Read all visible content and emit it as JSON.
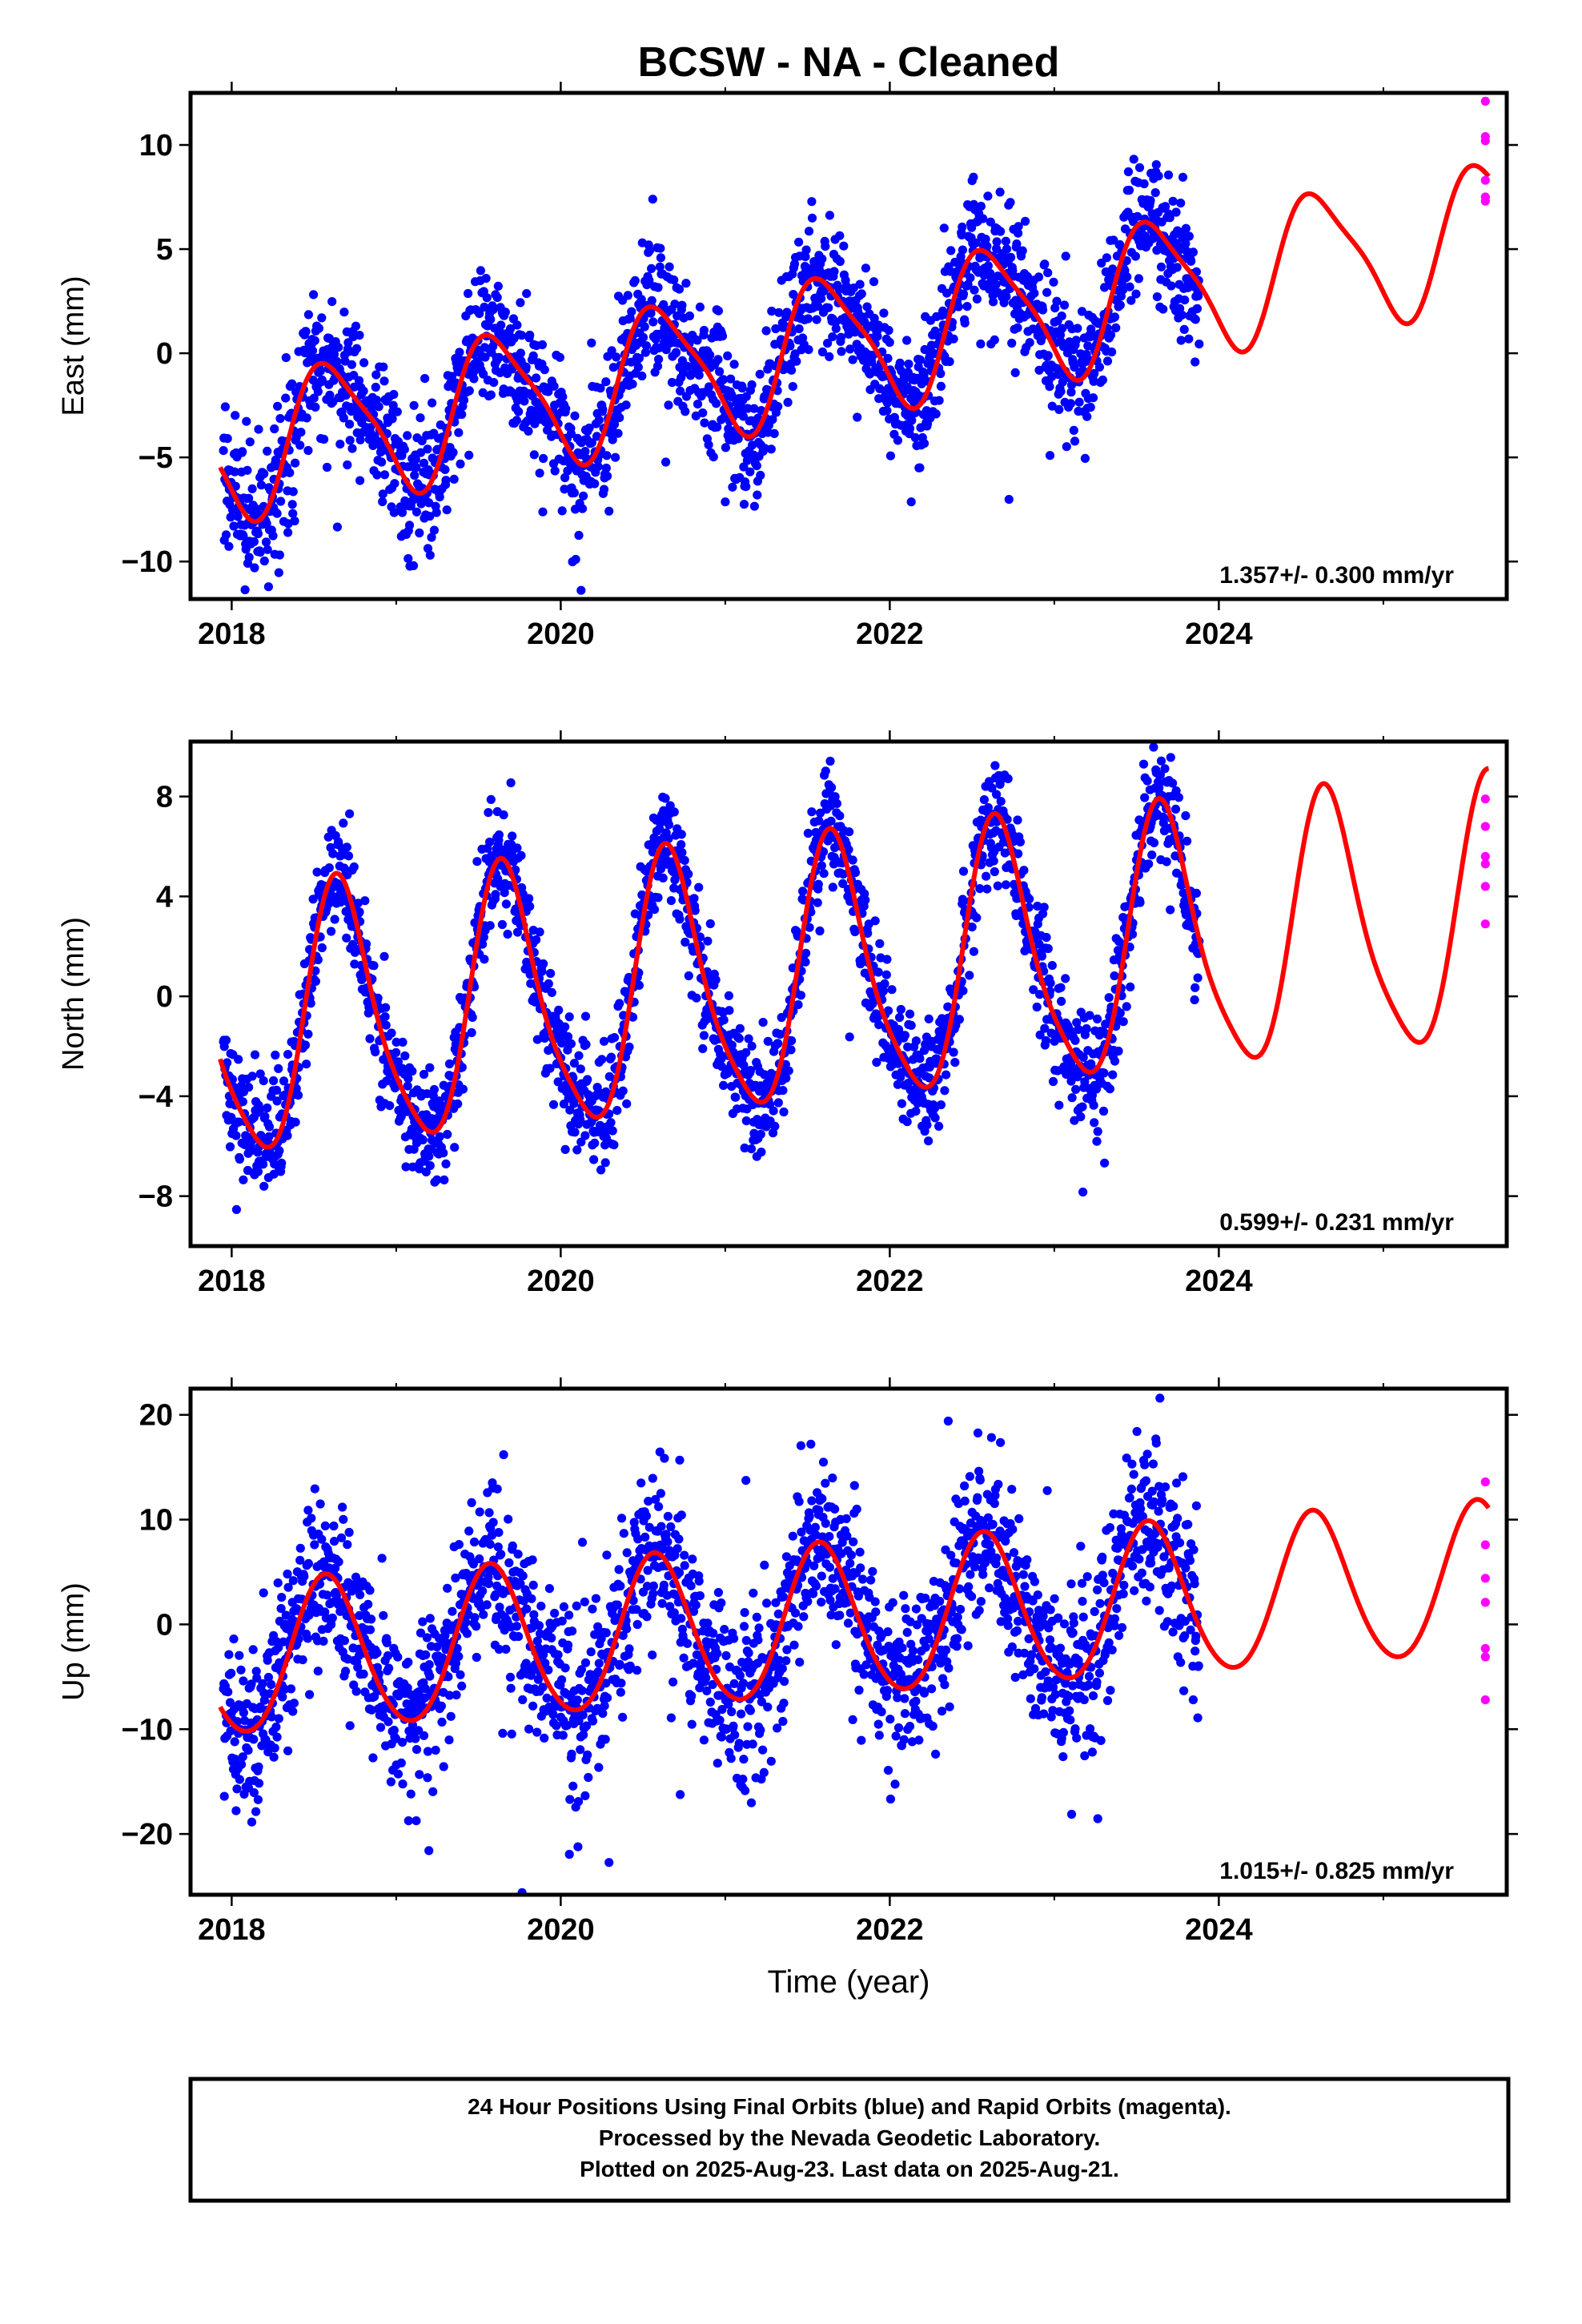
{
  "figure_title": "BCSW  - NA - Cleaned",
  "footer": {
    "line1": "24 Hour Positions Using Final Orbits (blue) and Rapid Orbits (magenta).",
    "line2": "Processed by the Nevada Geodetic Laboratory.",
    "line3": "Plotted on 2025-Aug-23. Last data on 2025-Aug-21."
  },
  "colors": {
    "final": "#0000ff",
    "rapid": "#ff00ff",
    "model": "#ff0000",
    "axes": "#000000"
  },
  "chart_data": [
    {
      "type": "scatter",
      "ylabel": "East (mm)",
      "xlabel": "",
      "xlim": [
        2017.75,
        2025.75
      ],
      "ylim": [
        -11.8,
        12.5
      ],
      "xticks": [
        "2018",
        "2020",
        "2022",
        "2024"
      ],
      "yticks": [
        "−10",
        "−5",
        "0",
        "5",
        "10"
      ],
      "rate_label": "1.357+/- 0.300 mm/yr",
      "data_span": [
        2017.95,
        2023.88
      ],
      "model": {
        "trend": [
          0.0,
          1.357
        ],
        "ref_year": 2021.0,
        "offset": -0.5,
        "annual": [
          -2.6,
          -2.0
        ],
        "semiannual": [
          0.6,
          -0.4
        ]
      },
      "noise_sd": 1.6,
      "outlier_fraction": 0.03,
      "final_points_count_note": "",
      "rapid_points": [
        {
          "x": 2025.62,
          "y": 12.1
        },
        {
          "x": 2025.62,
          "y": 10.4
        },
        {
          "x": 2025.62,
          "y": 10.2
        },
        {
          "x": 2025.62,
          "y": 8.3
        },
        {
          "x": 2025.62,
          "y": 7.5
        },
        {
          "x": 2025.62,
          "y": 7.3
        }
      ]
    },
    {
      "type": "scatter",
      "ylabel": "North (mm)",
      "xlabel": "",
      "xlim": [
        2017.75,
        2025.75
      ],
      "ylim": [
        -10.0,
        10.2
      ],
      "xticks": [
        "2018",
        "2020",
        "2022",
        "2024"
      ],
      "yticks": [
        "−8",
        "−4",
        "0",
        "4",
        "8"
      ],
      "rate_label": "0.599+/- 0.231 mm/yr",
      "data_span": [
        2017.95,
        2023.88
      ],
      "model": {
        "trend": [
          0.0,
          0.599
        ],
        "ref_year": 2021.0,
        "offset": 0.4,
        "annual": [
          -2.7,
          -4.4
        ],
        "semiannual": [
          0.3,
          0.9
        ]
      },
      "noise_sd": 1.1,
      "outlier_fraction": 0.03,
      "rapid_points": [
        {
          "x": 2025.62,
          "y": 7.9
        },
        {
          "x": 2025.62,
          "y": 6.8
        },
        {
          "x": 2025.62,
          "y": 5.6
        },
        {
          "x": 2025.62,
          "y": 5.3
        },
        {
          "x": 2025.62,
          "y": 4.4
        },
        {
          "x": 2025.62,
          "y": 2.9
        }
      ]
    },
    {
      "type": "scatter",
      "ylabel": "Up (mm)",
      "xlabel": "Time (year)",
      "xlim": [
        2017.75,
        2025.75
      ],
      "ylim": [
        -25.8,
        22.5
      ],
      "xticks": [
        "2018",
        "2020",
        "2022",
        "2024"
      ],
      "yticks": [
        "−20",
        "−10",
        "0",
        "10",
        "20"
      ],
      "rate_label": "1.015+/- 0.825 mm/yr",
      "data_span": [
        2017.95,
        2023.88
      ],
      "model": {
        "trend": [
          0.0,
          1.015
        ],
        "ref_year": 2021.0,
        "offset": -0.5,
        "annual": [
          -6.4,
          -3.4
        ],
        "semiannual": [
          0.5,
          0.3
        ]
      },
      "noise_sd": 4.0,
      "outlier_fraction": 0.03,
      "rapid_points": [
        {
          "x": 2025.62,
          "y": 13.6
        },
        {
          "x": 2025.62,
          "y": 7.6
        },
        {
          "x": 2025.62,
          "y": 4.4
        },
        {
          "x": 2025.62,
          "y": 2.1
        },
        {
          "x": 2025.62,
          "y": -2.3
        },
        {
          "x": 2025.62,
          "y": -3.1
        },
        {
          "x": 2025.62,
          "y": -7.2
        }
      ]
    }
  ]
}
